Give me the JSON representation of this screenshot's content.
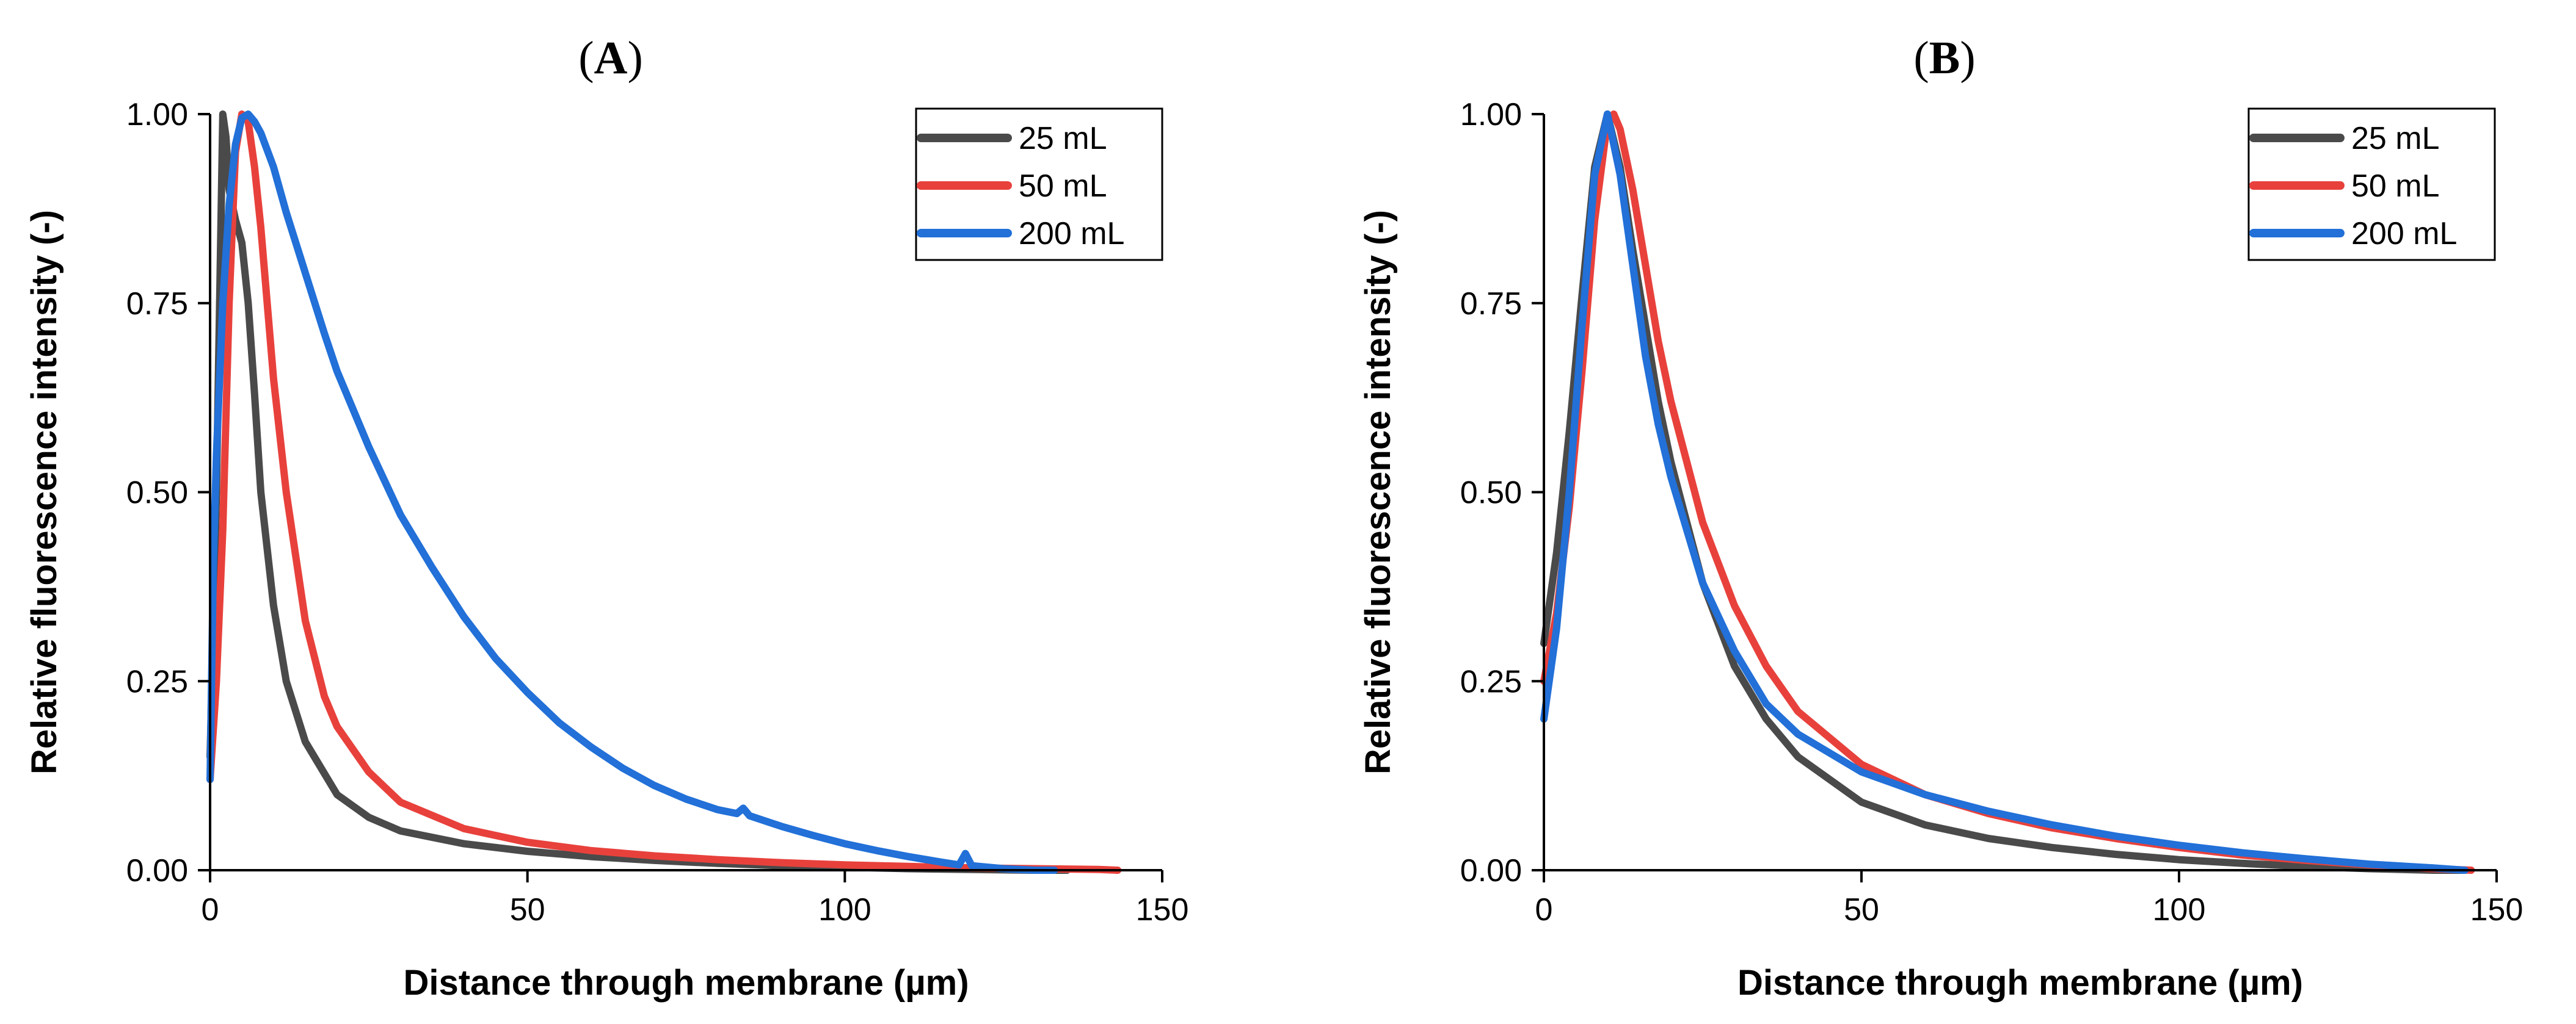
{
  "figure": {
    "panels": [
      "A",
      "B"
    ]
  },
  "chart_data": [
    {
      "type": "line",
      "panel": "A",
      "title": "A",
      "xlabel": "Distance through membrane (µm)",
      "ylabel": "Relative fluorescence intensity (-)",
      "xlim": [
        0,
        150
      ],
      "ylim": [
        0,
        1
      ],
      "xticks": [
        0,
        50,
        100,
        150
      ],
      "xtick_labels": [
        "0",
        "50",
        "100",
        "150"
      ],
      "yticks": [
        0,
        0.25,
        0.5,
        0.75,
        1.0
      ],
      "ytick_labels": [
        "0.00",
        "0.25",
        "0.50",
        "0.75",
        "1.00"
      ],
      "legend": "top-right",
      "series": [
        {
          "name": "25 mL",
          "color": "#4a4a4a",
          "x": [
            0,
            1,
            2,
            2.5,
            3,
            4,
            5,
            6,
            7,
            8,
            10,
            12,
            15,
            20,
            25,
            30,
            40,
            50,
            60,
            70,
            80,
            90,
            100,
            110,
            120,
            130,
            135
          ],
          "y": [
            0.15,
            0.5,
            1.0,
            0.97,
            0.9,
            0.86,
            0.83,
            0.75,
            0.63,
            0.5,
            0.35,
            0.25,
            0.17,
            0.1,
            0.07,
            0.052,
            0.035,
            0.025,
            0.018,
            0.013,
            0.009,
            0.006,
            0.004,
            0.002,
            0.001,
            0.0,
            0.0
          ]
        },
        {
          "name": "50 mL",
          "color": "#e8413c",
          "x": [
            0,
            1,
            2,
            3,
            4,
            5,
            6,
            7,
            8,
            10,
            12,
            15,
            18,
            20,
            25,
            30,
            40,
            50,
            60,
            70,
            80,
            90,
            100,
            110,
            120,
            130,
            140,
            143
          ],
          "y": [
            0.12,
            0.25,
            0.45,
            0.75,
            0.95,
            1.0,
            0.99,
            0.93,
            0.85,
            0.65,
            0.5,
            0.33,
            0.23,
            0.19,
            0.13,
            0.09,
            0.055,
            0.037,
            0.026,
            0.019,
            0.014,
            0.01,
            0.007,
            0.005,
            0.003,
            0.002,
            0.001,
            0.0
          ]
        },
        {
          "name": "200 mL",
          "color": "#2270d8",
          "x": [
            0,
            0.5,
            1,
            2,
            3,
            4,
            5,
            6,
            7,
            8,
            10,
            12,
            15,
            18,
            20,
            25,
            30,
            35,
            40,
            45,
            50,
            55,
            60,
            65,
            70,
            75,
            80,
            83,
            84,
            85,
            90,
            95,
            100,
            105,
            110,
            115,
            118,
            119,
            120,
            125,
            130,
            133
          ],
          "y": [
            0.12,
            0.4,
            0.55,
            0.75,
            0.88,
            0.96,
            0.995,
            1.0,
            0.99,
            0.975,
            0.93,
            0.87,
            0.79,
            0.71,
            0.66,
            0.56,
            0.47,
            0.4,
            0.335,
            0.28,
            0.235,
            0.195,
            0.163,
            0.135,
            0.112,
            0.094,
            0.08,
            0.075,
            0.082,
            0.072,
            0.058,
            0.046,
            0.035,
            0.026,
            0.018,
            0.011,
            0.007,
            0.022,
            0.006,
            0.002,
            0.0,
            0.0
          ]
        }
      ]
    },
    {
      "type": "line",
      "panel": "B",
      "title": "B",
      "xlabel": "Distance through membrane (µm)",
      "ylabel": "Relative fluorescence intensity (-)",
      "xlim": [
        0,
        150
      ],
      "ylim": [
        0,
        1
      ],
      "xticks": [
        0,
        50,
        100,
        150
      ],
      "xtick_labels": [
        "0",
        "50",
        "100",
        "150"
      ],
      "yticks": [
        0,
        0.25,
        0.5,
        0.75,
        1.0
      ],
      "ytick_labels": [
        "0.00",
        "0.25",
        "0.50",
        "0.75",
        "1.00"
      ],
      "legend": "top-right",
      "series": [
        {
          "name": "25 mL",
          "color": "#4a4a4a",
          "x": [
            0,
            2,
            4,
            6,
            8,
            10,
            12,
            14,
            16,
            18,
            20,
            25,
            30,
            35,
            40,
            50,
            60,
            70,
            80,
            90,
            100,
            110,
            120,
            130,
            140,
            145
          ],
          "y": [
            0.3,
            0.42,
            0.58,
            0.76,
            0.93,
            1.0,
            0.93,
            0.82,
            0.72,
            0.62,
            0.54,
            0.38,
            0.27,
            0.2,
            0.15,
            0.09,
            0.06,
            0.042,
            0.03,
            0.021,
            0.014,
            0.009,
            0.005,
            0.002,
            0.0,
            0.0
          ]
        },
        {
          "name": "50 mL",
          "color": "#e8413c",
          "x": [
            0,
            2,
            4,
            6,
            8,
            10,
            11,
            12,
            14,
            16,
            18,
            20,
            25,
            30,
            35,
            40,
            50,
            60,
            70,
            80,
            90,
            100,
            110,
            120,
            130,
            140,
            146
          ],
          "y": [
            0.25,
            0.34,
            0.48,
            0.66,
            0.86,
            0.99,
            1.0,
            0.98,
            0.9,
            0.8,
            0.7,
            0.62,
            0.46,
            0.35,
            0.27,
            0.21,
            0.14,
            0.1,
            0.075,
            0.056,
            0.042,
            0.03,
            0.02,
            0.013,
            0.007,
            0.002,
            0.0
          ]
        },
        {
          "name": "200 mL",
          "color": "#2270d8",
          "x": [
            0,
            2,
            4,
            6,
            8,
            10,
            12,
            14,
            16,
            18,
            20,
            25,
            30,
            35,
            40,
            50,
            60,
            70,
            80,
            90,
            100,
            110,
            120,
            130,
            140,
            145
          ],
          "y": [
            0.2,
            0.32,
            0.5,
            0.72,
            0.92,
            1.0,
            0.92,
            0.8,
            0.68,
            0.59,
            0.52,
            0.38,
            0.29,
            0.22,
            0.18,
            0.13,
            0.1,
            0.078,
            0.06,
            0.045,
            0.033,
            0.023,
            0.015,
            0.008,
            0.003,
            0.0
          ]
        }
      ]
    }
  ]
}
